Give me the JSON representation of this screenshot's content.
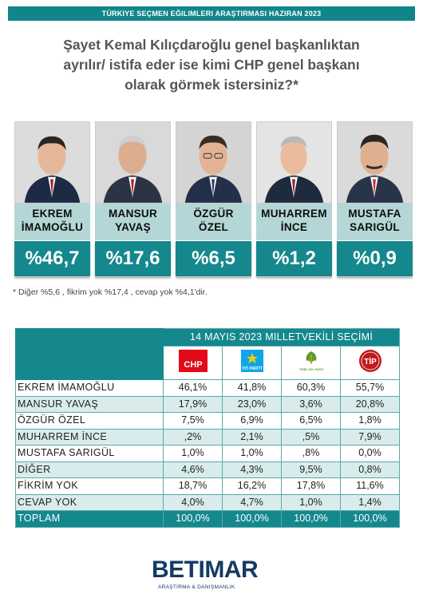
{
  "header": {
    "banner": "TÜRKIYE SEÇMEN EĞILIMLERI ARAŞTIRMASI HAZIRAN 2023"
  },
  "question": {
    "line1": "Şayet Kemal Kılıçdaroğlu genel başkanlıktan",
    "line2": "ayrılır/ istifa eder ise kimi CHP genel başkanı",
    "line3": "olarak görmek istersiniz?*"
  },
  "candidates": [
    {
      "name1": "EKREM",
      "name2": "İMAMOĞLU",
      "pct_label": "%46,7",
      "value": 46.7
    },
    {
      "name1": "MANSUR",
      "name2": "YAVAŞ",
      "pct_label": "%17,6",
      "value": 17.6
    },
    {
      "name1": "ÖZGÜR",
      "name2": "ÖZEL",
      "pct_label": "%6,5",
      "value": 6.5
    },
    {
      "name1": "MUHARREM",
      "name2": "İNCE",
      "pct_label": "%1,2",
      "value": 1.2
    },
    {
      "name1": "MUSTAFA",
      "name2": "SARIGÜL",
      "pct_label": "%0,9",
      "value": 0.9
    }
  ],
  "footnote": "* Diğer %5,6 , fikrim yok %17,4 , cevap yok %4,1'dir.",
  "table": {
    "title": "14 MAYIS 2023 MILLETVEKİLİ SEÇİMİ",
    "parties": [
      {
        "short": "CHP",
        "color": "#e30a17"
      },
      {
        "short": "İYİ PARTİ",
        "color": "#0ea5e9"
      },
      {
        "short": "YEŞİL SOL PARTİ",
        "color": "#5a9e2e"
      },
      {
        "short": "TİP",
        "color": "#c01a1a"
      }
    ],
    "rows": [
      {
        "label": "EKREM İMAMOĞLU",
        "values": [
          "46,1%",
          "41,8%",
          "60,3%",
          "55,7%"
        ]
      },
      {
        "label": "MANSUR YAVAŞ",
        "values": [
          "17,9%",
          "23,0%",
          "3,6%",
          "20,8%"
        ]
      },
      {
        "label": "ÖZGÜR ÖZEL",
        "values": [
          "7,5%",
          "6,9%",
          "6,5%",
          "1,8%"
        ]
      },
      {
        "label": "MUHARREM İNCE",
        "values": [
          ",2%",
          "2,1%",
          ",5%",
          "7,9%"
        ]
      },
      {
        "label": "MUSTAFA SARIGÜL",
        "values": [
          "1,0%",
          "1,0%",
          ",8%",
          "0,0%"
        ]
      },
      {
        "label": "DİĞER",
        "values": [
          "4,6%",
          "4,3%",
          "9,5%",
          "0,8%"
        ]
      },
      {
        "label": "FİKRİM YOK",
        "values": [
          "18,7%",
          "16,2%",
          "17,8%",
          "11,6%"
        ]
      },
      {
        "label": "CEVAP YOK",
        "values": [
          "4,0%",
          "4,7%",
          "1,0%",
          "1,4%"
        ]
      }
    ],
    "total": {
      "label": "TOPLAM",
      "values": [
        "100,0%",
        "100,0%",
        "100,0%",
        "100,0%"
      ]
    }
  },
  "brand": {
    "name": "BETIMAR",
    "subtitle": "ARAŞTIRMA & DANIŞMANLIK"
  },
  "chart_data": [
    {
      "type": "bar",
      "categories": [
        "EKREM İMAMOĞLU",
        "MANSUR YAVAŞ",
        "ÖZGÜR ÖZEL",
        "MUHARREM İNCE",
        "MUSTAFA SARIGÜL"
      ],
      "values": [
        46.7,
        17.6,
        6.5,
        1.2,
        0.9
      ]
    },
    {
      "type": "table",
      "categories": [
        "EKREM İMAMOĞLU",
        "MANSUR YAVAŞ",
        "ÖZGÜR ÖZEL",
        "MUHARREM İNCE",
        "MUSTAFA SARIGÜL",
        "DİĞER",
        "FİKRİM YOK",
        "CEVAP YOK",
        "TOPLAM"
      ],
      "series": [
        {
          "name": "CHP",
          "values": [
            46.1,
            17.9,
            7.5,
            0.2,
            1.0,
            4.6,
            18.7,
            4.0,
            100.0
          ]
        },
        {
          "name": "İYİ PARTİ",
          "values": [
            41.8,
            23.0,
            6.9,
            2.1,
            1.0,
            4.3,
            16.2,
            4.7,
            100.0
          ]
        },
        {
          "name": "YEŞİL SOL PARTİ",
          "values": [
            60.3,
            3.6,
            6.5,
            0.5,
            0.8,
            9.5,
            17.8,
            1.0,
            100.0
          ]
        },
        {
          "name": "TİP",
          "values": [
            55.7,
            20.8,
            1.8,
            7.9,
            0.0,
            0.8,
            11.6,
            1.4,
            100.0
          ]
        }
      ]
    }
  ]
}
